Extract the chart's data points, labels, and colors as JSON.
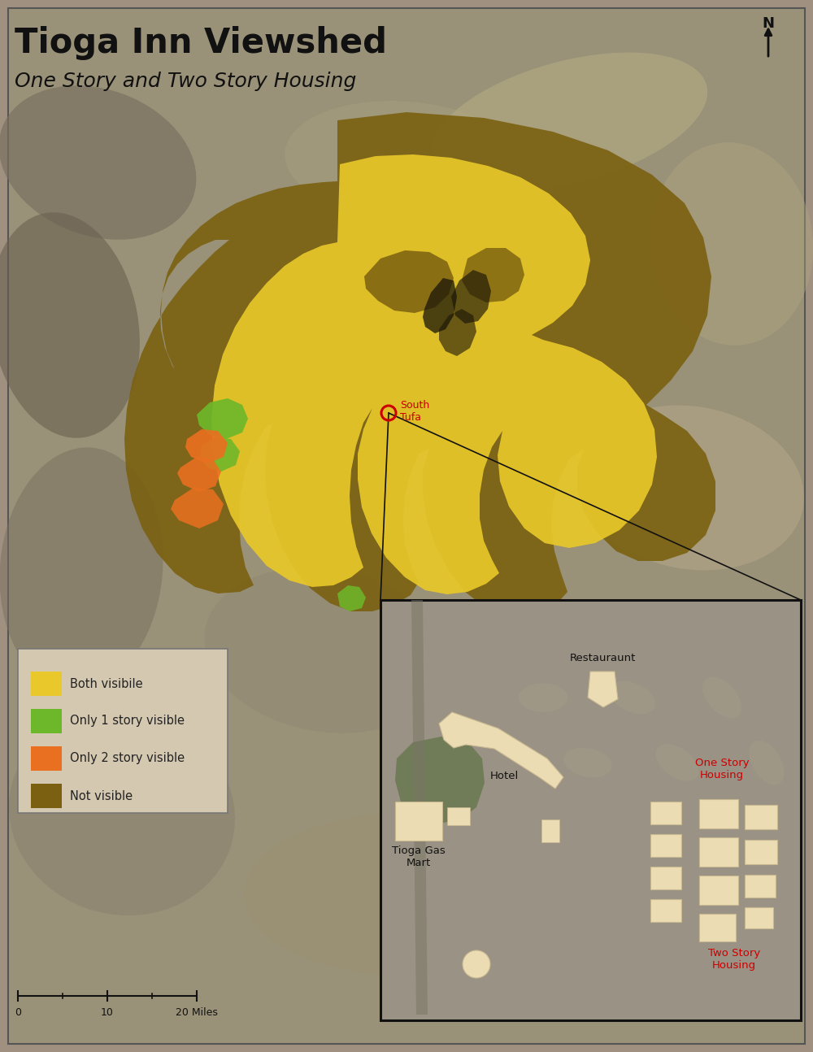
{
  "title": "Tioga Inn Viewshed",
  "subtitle": "One Story and Two Story Housing",
  "title_color": "#111111",
  "subtitle_color": "#111111",
  "terrain_bg": "#9a9080",
  "legend_bg": "#d4c8b0",
  "legend_items": [
    {
      "label": "Both visibile",
      "color": "#e8c82a"
    },
    {
      "label": "Only 1 story visible",
      "color": "#6db82a"
    },
    {
      "label": "Only 2 story visible",
      "color": "#e87020"
    },
    {
      "label": "Not visible",
      "color": "#7a6010"
    }
  ],
  "both_color": "#e8c82a",
  "one_story_color": "#6db82a",
  "two_story_color": "#e87020",
  "not_visible_color": "#7a6010",
  "south_tufa_color": "#cc0000",
  "inset_border_color": "#111111",
  "building_color": "#ecdcb4",
  "north_arrow_color": "#111111",
  "map_border_color": "#555555"
}
